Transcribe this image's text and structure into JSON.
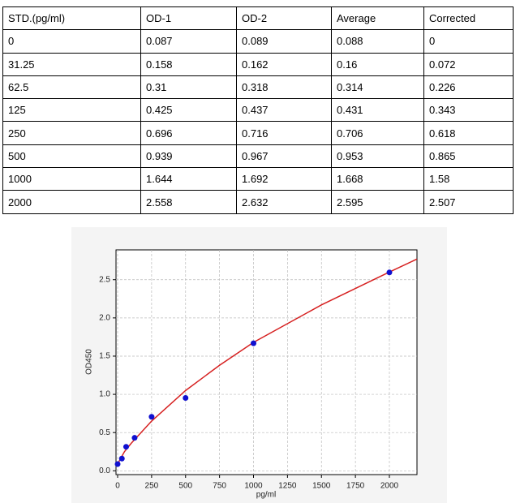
{
  "table": {
    "header": [
      "STD.(pg/ml)",
      "OD-1",
      "OD-2",
      "Average",
      "Corrected"
    ],
    "rows": [
      [
        "0",
        "0.087",
        "0.089",
        "0.088",
        "0"
      ],
      [
        "31.25",
        "0.158",
        "0.162",
        "0.16",
        "0.072"
      ],
      [
        "62.5",
        "0.31",
        "0.318",
        "0.314",
        "0.226"
      ],
      [
        "125",
        "0.425",
        "0.437",
        "0.431",
        "0.343"
      ],
      [
        "250",
        "0.696",
        "0.716",
        "0.706",
        "0.618"
      ],
      [
        "500",
        "0.939",
        "0.967",
        "0.953",
        "0.865"
      ],
      [
        "1000",
        "1.644",
        "1.692",
        "1.668",
        "1.58"
      ],
      [
        "2000",
        "2.558",
        "2.632",
        "2.595",
        "2.507"
      ]
    ]
  },
  "chart_data": {
    "type": "scatter",
    "x_label": "pg/ml",
    "y_label": "OD450",
    "series": [
      {
        "type": "scatter",
        "color": "#1010d0",
        "x": [
          0,
          31.25,
          62.5,
          125,
          250,
          500,
          1000,
          2000
        ],
        "values": [
          0.088,
          0.16,
          0.314,
          0.431,
          0.706,
          0.953,
          1.668,
          2.595
        ]
      },
      {
        "type": "line",
        "color": "#d62020",
        "x": [
          0,
          50,
          100,
          250,
          500,
          750,
          1000,
          1500,
          2000,
          2203
        ],
        "values": [
          0.09,
          0.25,
          0.36,
          0.65,
          1.05,
          1.38,
          1.68,
          2.17,
          2.6,
          2.77
        ]
      }
    ],
    "xlim": [
      -12,
      2203
    ],
    "ylim": [
      -0.05,
      2.89
    ],
    "xticks": [
      0,
      250,
      500,
      750,
      1000,
      1250,
      1500,
      1750,
      2000
    ],
    "yticks": [
      {
        "value": 0,
        "label": "0.0"
      },
      {
        "value": 0.5,
        "label": "0.5"
      },
      {
        "value": 1,
        "label": "1.0"
      },
      {
        "value": 1.5,
        "label": "1.5"
      },
      {
        "value": 2,
        "label": "2.0"
      },
      {
        "value": 2.5,
        "label": "2.5"
      }
    ],
    "grid": true
  }
}
